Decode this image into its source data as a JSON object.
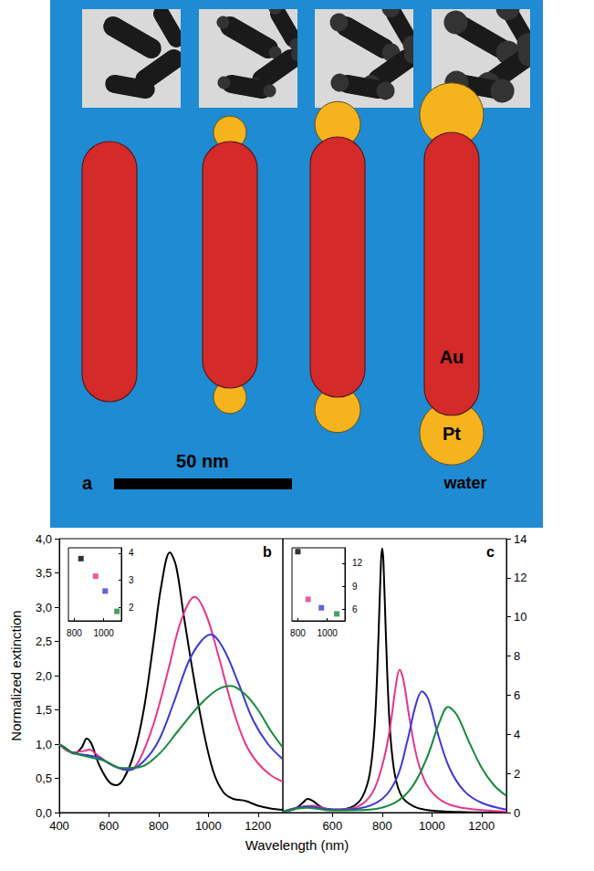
{
  "panel_a": {
    "label": "a",
    "scale_bar": "50 nm",
    "core": "Au",
    "tip": "Pt",
    "medium": "water"
  },
  "x_label": "Wavelength (nm)",
  "chart_data": [
    {
      "type": "line",
      "label": "b",
      "y_label": "Normalized extinction",
      "xlim": [
        400,
        1300
      ],
      "xticks": [
        400,
        600,
        800,
        1000,
        1200
      ],
      "ylim": [
        0,
        4
      ],
      "yticks": [
        {
          "value": 0,
          "label": "0,0"
        },
        {
          "value": 0.5,
          "label": "0,5"
        },
        {
          "value": 1,
          "label": "1,0"
        },
        {
          "value": 1.5,
          "label": "1,5"
        },
        {
          "value": 2,
          "label": "2,0"
        },
        {
          "value": 2.5,
          "label": "2,5"
        },
        {
          "value": 3,
          "label": "3,0"
        },
        {
          "value": 3.5,
          "label": "3,5"
        },
        {
          "value": 4,
          "label": "4,0"
        }
      ],
      "tick_labels": true,
      "series": [
        {
          "color": "#000000",
          "x": [
            400,
            430,
            460,
            490,
            510,
            530,
            560,
            600,
            630,
            660,
            700,
            740,
            780,
            810,
            845,
            870,
            900,
            940,
            980,
            1020,
            1060,
            1100,
            1150,
            1200,
            1250,
            1300
          ],
          "values": [
            1.0,
            0.93,
            0.86,
            0.95,
            1.08,
            1.0,
            0.7,
            0.45,
            0.4,
            0.5,
            0.85,
            1.5,
            2.5,
            3.3,
            3.8,
            3.6,
            2.9,
            2.0,
            1.2,
            0.6,
            0.3,
            0.2,
            0.17,
            0.1,
            0.06,
            0.04
          ]
        },
        {
          "color": "#e8358c",
          "x": [
            400,
            450,
            500,
            520,
            560,
            620,
            680,
            720,
            780,
            840,
            890,
            945,
            990,
            1040,
            1100,
            1150,
            1200,
            1250,
            1300
          ],
          "values": [
            1.0,
            0.88,
            0.9,
            0.92,
            0.82,
            0.68,
            0.62,
            0.75,
            1.3,
            2.1,
            2.8,
            3.15,
            2.9,
            2.3,
            1.5,
            1.0,
            0.72,
            0.55,
            0.45
          ]
        },
        {
          "color": "#3b3bd6",
          "x": [
            400,
            450,
            510,
            560,
            620,
            680,
            740,
            800,
            860,
            920,
            970,
            1010,
            1060,
            1120,
            1180,
            1240,
            1300
          ],
          "values": [
            1.0,
            0.88,
            0.84,
            0.8,
            0.68,
            0.62,
            0.75,
            1.05,
            1.6,
            2.2,
            2.5,
            2.6,
            2.4,
            1.9,
            1.35,
            1.0,
            0.78
          ]
        },
        {
          "color": "#178a3c",
          "x": [
            400,
            450,
            510,
            580,
            650,
            720,
            800,
            880,
            960,
            1030,
            1090,
            1150,
            1200,
            1250,
            1300
          ],
          "values": [
            1.0,
            0.88,
            0.82,
            0.76,
            0.65,
            0.66,
            0.85,
            1.2,
            1.55,
            1.78,
            1.85,
            1.72,
            1.5,
            1.2,
            0.95
          ]
        }
      ],
      "inset": {
        "type": "scatter",
        "marker": "square",
        "xlim": [
          760,
          1120
        ],
        "xticks": [
          800,
          1000
        ],
        "ylim": [
          1.5,
          4.2
        ],
        "yticks": [
          2,
          3,
          4
        ],
        "x": [
          845,
          945,
          1010,
          1090
        ],
        "values": [
          3.8,
          3.15,
          2.6,
          1.85
        ],
        "colors": [
          "#000000",
          "#e8358c",
          "#3b3bd6",
          "#178a3c"
        ]
      }
    },
    {
      "type": "line",
      "label": "c",
      "xlim": [
        400,
        1300
      ],
      "xticks": [
        600,
        800,
        1000,
        1200
      ],
      "ylim": [
        0,
        14
      ],
      "yticks": [
        0,
        2,
        4,
        6,
        8,
        10,
        12,
        14
      ],
      "tick_labels": true,
      "series": [
        {
          "color": "#000000",
          "x": [
            400,
            450,
            480,
            500,
            520,
            560,
            620,
            680,
            720,
            750,
            770,
            785,
            795,
            800,
            805,
            815,
            830,
            850,
            880,
            930,
            1000,
            1100,
            1300
          ],
          "values": [
            0.05,
            0.2,
            0.5,
            0.7,
            0.6,
            0.25,
            0.15,
            0.3,
            0.8,
            2.0,
            4.5,
            9,
            12.8,
            13.5,
            12.8,
            9,
            4.5,
            2.0,
            0.8,
            0.3,
            0.1,
            0.03,
            0
          ]
        },
        {
          "color": "#e8358c",
          "x": [
            400,
            480,
            520,
            600,
            700,
            760,
            800,
            830,
            855,
            870,
            885,
            910,
            940,
            980,
            1040,
            1120,
            1300
          ],
          "values": [
            0.05,
            0.3,
            0.35,
            0.15,
            0.3,
            1.0,
            2.4,
            4.2,
            6.5,
            7.3,
            6.8,
            4.8,
            2.8,
            1.4,
            0.6,
            0.25,
            0.05
          ]
        },
        {
          "color": "#3b3bd6",
          "x": [
            400,
            500,
            600,
            700,
            800,
            860,
            900,
            935,
            960,
            985,
            1020,
            1070,
            1130,
            1200,
            1300
          ],
          "values": [
            0.05,
            0.3,
            0.15,
            0.2,
            0.7,
            1.8,
            3.6,
            5.5,
            6.2,
            5.8,
            4.2,
            2.3,
            1.1,
            0.5,
            0.15
          ]
        },
        {
          "color": "#178a3c",
          "x": [
            400,
            500,
            600,
            750,
            850,
            920,
            980,
            1030,
            1065,
            1100,
            1150,
            1200,
            1250,
            1300
          ],
          "values": [
            0.05,
            0.25,
            0.1,
            0.15,
            0.5,
            1.3,
            2.8,
            4.6,
            5.4,
            5.0,
            3.6,
            2.3,
            1.4,
            0.85
          ]
        }
      ],
      "inset": {
        "type": "scatter",
        "marker": "square",
        "xlim": [
          760,
          1120
        ],
        "xticks": [
          800,
          1000
        ],
        "ylim": [
          4.5,
          14
        ],
        "yticks": [
          6,
          9,
          12
        ],
        "x": [
          800,
          870,
          960,
          1065
        ],
        "values": [
          13.5,
          7.3,
          6.2,
          5.4
        ],
        "colors": [
          "#000000",
          "#e8358c",
          "#3b3bd6",
          "#178a3c"
        ]
      }
    }
  ]
}
